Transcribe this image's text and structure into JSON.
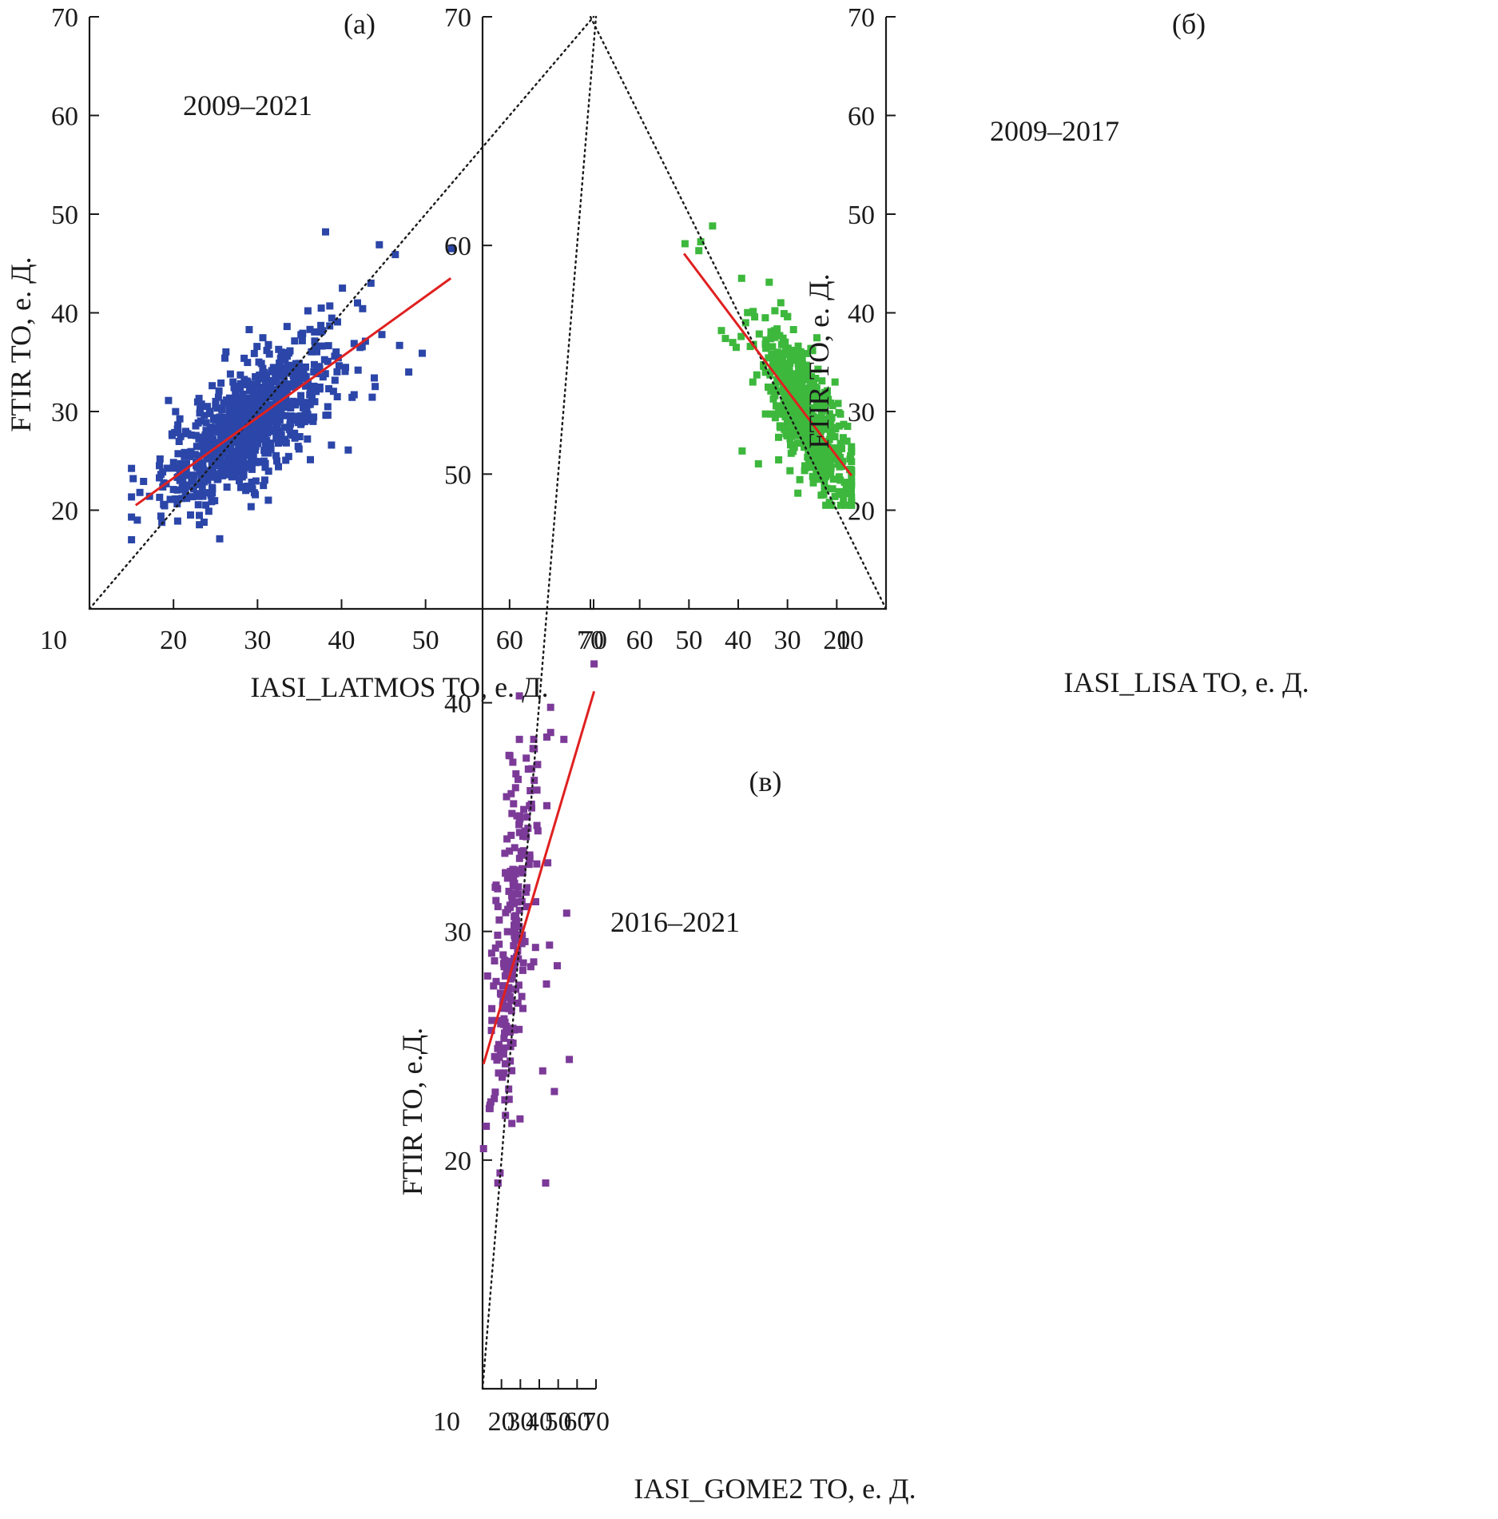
{
  "figure": {
    "panels": [
      {
        "panel_label": "(а)",
        "period_label": "2009–2021",
        "point_color": "#2b46a8",
        "fit_color": "#e02020",
        "chart_data": {
          "type": "scatter",
          "xlabel": "IASI_LATMOS TO, е. Д.",
          "ylabel": "FTIR TO, е. Д.",
          "xlim": [
            10,
            70
          ],
          "ylim": [
            10,
            70
          ],
          "xticks": [
            "10",
            "20",
            "30",
            "40",
            "50",
            "60",
            "70"
          ],
          "yticks": [
            "20",
            "30",
            "40",
            "50",
            "60",
            "70"
          ],
          "identity_line": {
            "from": [
              10,
              10
            ],
            "to": [
              70,
              70
            ],
            "style": "dotted"
          },
          "fit_line": {
            "from": [
              15.5,
              20.5
            ],
            "to": [
              53,
              43.5
            ]
          },
          "marker": "square",
          "point_cloud": {
            "n": 820,
            "x_mean": 29.0,
            "x_sd": 5.0,
            "slope": 0.61,
            "intercept": 11.1,
            "resid_sd": 3.0,
            "x_min": 15,
            "x_max": 50,
            "y_min": 17,
            "y_max": 44
          },
          "points": [
            [
              15.2,
              23.2
            ],
            [
              15.7,
              19.0
            ],
            [
              16.0,
              21.8
            ],
            [
              18.5,
              19.4
            ],
            [
              20.5,
              18.9
            ],
            [
              25.5,
              17.1
            ],
            [
              28.6,
              22.0
            ],
            [
              38.1,
              48.2
            ],
            [
              44.5,
              46.9
            ],
            [
              46.4,
              45.9
            ],
            [
              53.1,
              46.5
            ],
            [
              43.5,
              43.0
            ],
            [
              40.1,
              42.5
            ],
            [
              41.9,
              41.0
            ],
            [
              46.9,
              36.7
            ],
            [
              49.6,
              35.9
            ],
            [
              48.0,
              34.0
            ],
            [
              44.8,
              37.8
            ],
            [
              43.9,
              33.4
            ],
            [
              40.8,
              26.1
            ],
            [
              38.8,
              26.6
            ],
            [
              39.5,
              31.5
            ],
            [
              41.5,
              31.7
            ],
            [
              36.0,
              40.2
            ],
            [
              38.6,
              40.7
            ]
          ]
        }
      },
      {
        "panel_label": "(б)",
        "period_label": "2009–2017",
        "point_color": "#3db83d",
        "fit_color": "#e02020",
        "chart_data": {
          "type": "scatter",
          "xlabel": "IASI_LISA TO, е. Д.",
          "ylabel": "FTIR TO, е. Д.",
          "xlim": [
            10,
            70
          ],
          "ylim": [
            10,
            70
          ],
          "xticks": [
            "10",
            "20",
            "30",
            "40",
            "50",
            "60",
            "70"
          ],
          "yticks": [
            "20",
            "30",
            "40",
            "50",
            "60",
            "70"
          ],
          "identity_line": {
            "from": [
              10,
              10
            ],
            "to": [
              70,
              70
            ],
            "style": "dotted"
          },
          "fit_line": {
            "from": [
              17,
              23.5
            ],
            "to": [
              51,
              46
            ]
          },
          "marker": "square",
          "point_cloud": {
            "n": 560,
            "x_mean": 26.0,
            "x_sd": 4.3,
            "slope": 0.66,
            "intercept": 12.5,
            "resid_sd": 2.9,
            "x_min": 17,
            "x_max": 44,
            "y_min": 20.5,
            "y_max": 44
          },
          "points": [
            [
              45.2,
              48.8
            ],
            [
              47.6,
              47.2
            ],
            [
              48.0,
              46.3
            ],
            [
              50.8,
              47.0
            ],
            [
              39.3,
              43.5
            ],
            [
              33.7,
              43.1
            ],
            [
              39.2,
              26.0
            ],
            [
              35.9,
              24.7
            ],
            [
              31.8,
              25.1
            ],
            [
              29.5,
              24.0
            ],
            [
              17.3,
              25.2
            ],
            [
              17.8,
              28.5
            ],
            [
              18.6,
              28.7
            ],
            [
              21.5,
              20.8
            ],
            [
              19.0,
              21.6
            ],
            [
              43.4,
              38.2
            ],
            [
              42.6,
              37.4
            ],
            [
              40.4,
              36.5
            ],
            [
              36.9,
              36.8
            ],
            [
              38.5,
              39.0
            ],
            [
              39.4,
              37.6
            ],
            [
              34.5,
              39.5
            ],
            [
              30.0,
              39.6
            ],
            [
              41.1,
              37.0
            ],
            [
              28.7,
              36.2
            ]
          ]
        }
      },
      {
        "panel_label": "(в)",
        "period_label": "2016–2021",
        "point_color": "#7c3a98",
        "fit_color": "#e02020",
        "chart_data": {
          "type": "scatter",
          "xlabel": "IASI_GOME2 TO, е. Д.",
          "ylabel": "FTIR TO, е.Д.",
          "xlim": [
            10,
            70
          ],
          "ylim": [
            10,
            70
          ],
          "xticks": [
            "10",
            "20",
            "30",
            "40",
            "50",
            "60",
            "70"
          ],
          "yticks": [
            "20",
            "30",
            "40",
            "50",
            "60",
            "70"
          ],
          "identity_line": {
            "from": [
              10,
              10
            ],
            "to": [
              70,
              70
            ],
            "style": "dotted"
          },
          "fit_line": {
            "from": [
              10.5,
              24.2
            ],
            "to": [
              69,
              40.5
            ]
          },
          "marker": "square",
          "point_cloud": {
            "n": 210,
            "x_mean": 25.5,
            "x_sd": 6.0,
            "slope": 0.45,
            "intercept": 18.0,
            "resid_sd": 3.3,
            "x_min": 12,
            "x_max": 40,
            "y_min": 19,
            "y_max": 38
          },
          "points": [
            [
              10.5,
              20.5
            ],
            [
              18.2,
              19.0
            ],
            [
              43.4,
              19.0
            ],
            [
              41.8,
              23.9
            ],
            [
              48.0,
              23.0
            ],
            [
              55.9,
              24.4
            ],
            [
              54.5,
              30.8
            ],
            [
              49.5,
              28.5
            ],
            [
              53.0,
              38.4
            ],
            [
              46.0,
              39.8
            ],
            [
              46.0,
              38.7
            ],
            [
              44.0,
              38.5
            ],
            [
              44.0,
              35.5
            ],
            [
              44.5,
              33.0
            ],
            [
              45.4,
              29.4
            ],
            [
              43.8,
              27.7
            ],
            [
              69.0,
              41.7
            ],
            [
              29.5,
              40.3
            ],
            [
              29.5,
              38.4
            ],
            [
              24.0,
              37.7
            ],
            [
              26.0,
              37.4
            ],
            [
              38.0,
              29.3
            ],
            [
              29.8,
              21.8
            ],
            [
              25.5,
              21.6
            ],
            [
              37.1,
              38.4
            ],
            [
              39.1,
              37.3
            ],
            [
              39.3,
              34.4
            ],
            [
              34.2,
              37.1
            ],
            [
              36.0,
              35.4
            ],
            [
              38.1,
              31.3
            ]
          ]
        }
      }
    ]
  }
}
